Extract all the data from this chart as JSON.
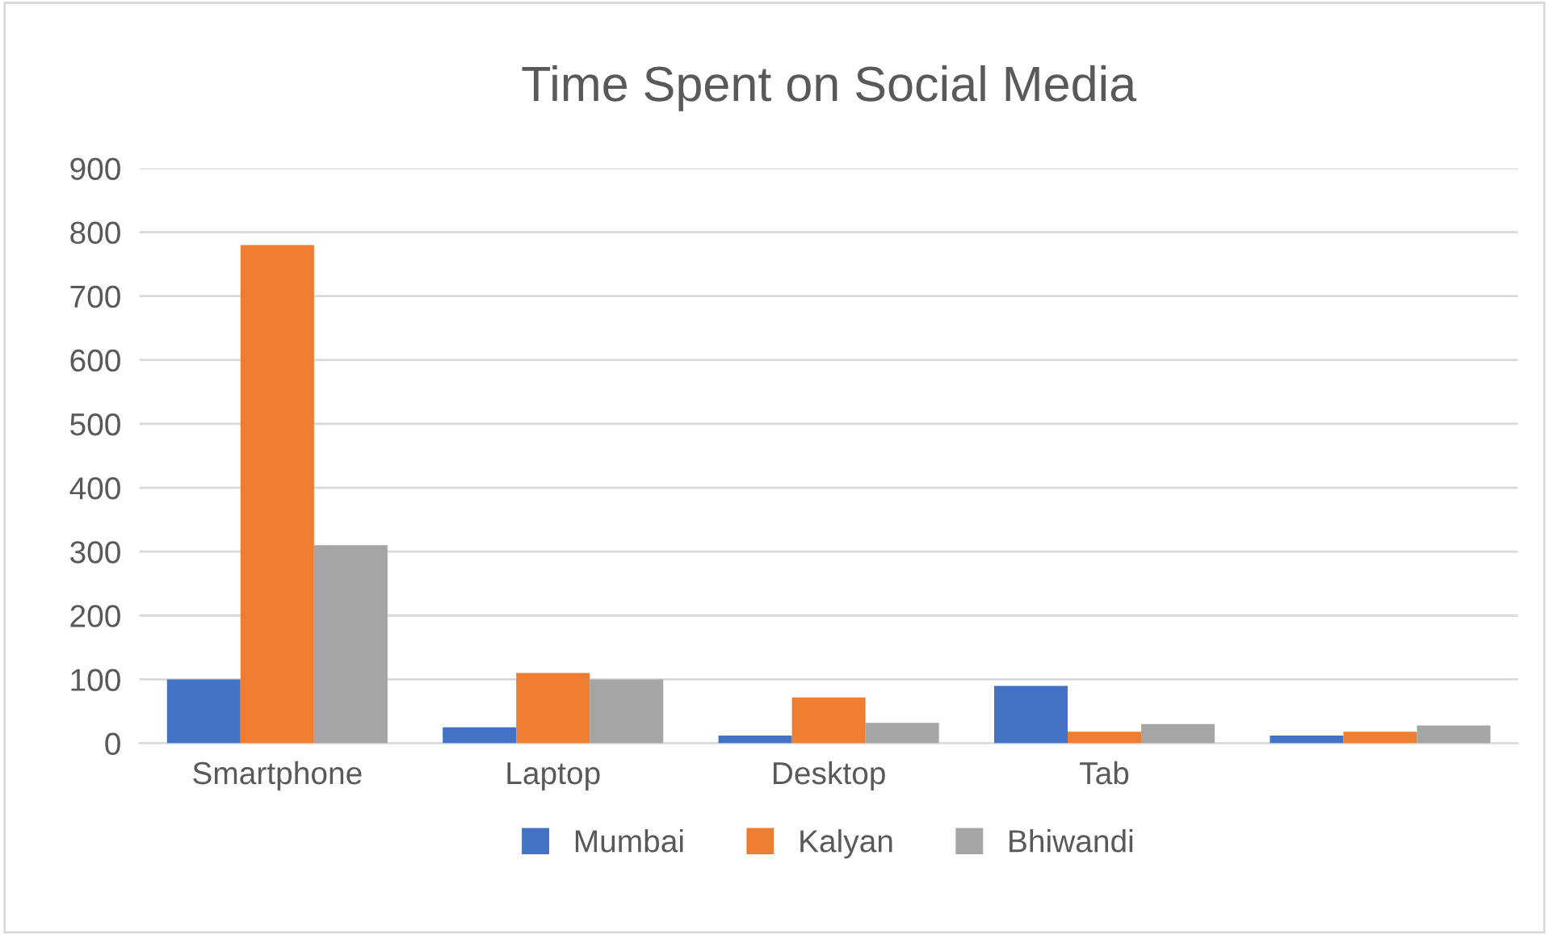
{
  "chart_data": {
    "type": "bar",
    "title": "Time Spent on Social Media",
    "categories": [
      "Smartphone",
      "Laptop",
      "Desktop",
      "Tab",
      null
    ],
    "series": [
      {
        "name": "Mumbai",
        "color": "#4472c4",
        "values": [
          100,
          25,
          12,
          90,
          12
        ]
      },
      {
        "name": "Kalyan",
        "color": "#ed7d31",
        "values": [
          780,
          110,
          72,
          18,
          18
        ]
      },
      {
        "name": "Bhiwandi",
        "color": "#a5a5a5",
        "values": [
          310,
          100,
          32,
          30,
          28
        ]
      }
    ],
    "ylim": [
      0,
      900
    ],
    "yticks": [
      0,
      100,
      200,
      300,
      400,
      500,
      600,
      700,
      800,
      900
    ],
    "grid": "y",
    "legend": "bottom"
  }
}
